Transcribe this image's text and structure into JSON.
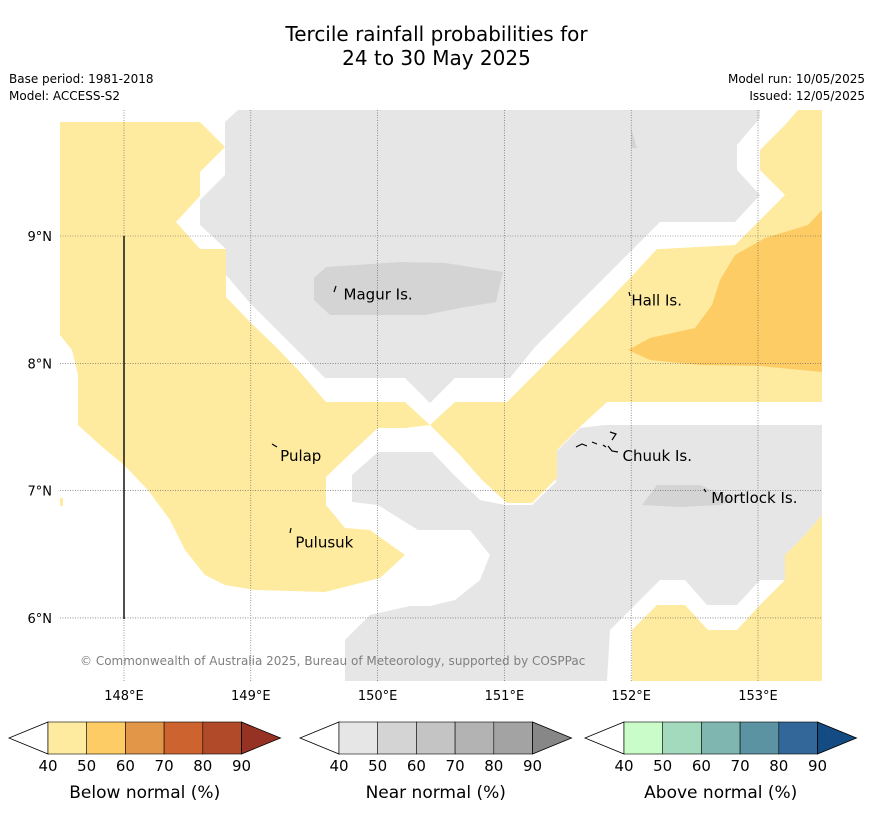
{
  "title_line1": "Tercile rainfall probabilities for",
  "title_line2": "24 to 30 May 2025",
  "base_period": "Base period: 1981-2018",
  "model": "Model: ACCESS-S2",
  "model_run": "Model run: 10/05/2025",
  "issued": "Issued: 12/05/2025",
  "copyright": "© Commonwealth of Australia 2025, Bureau of Meteorology, supported by COSPPac",
  "longitude_ticks": [
    "148°E",
    "149°E",
    "150°E",
    "151°E",
    "152°E",
    "153°E"
  ],
  "latitude_ticks": [
    "9°N",
    "8°N",
    "7°N",
    "6°N"
  ],
  "places": [
    {
      "name": "Magur Is.",
      "lon": 149.7,
      "lat": 8.55
    },
    {
      "name": "Hall Is.",
      "lon": 151.97,
      "lat": 8.5
    },
    {
      "name": "Pulap",
      "lon": 149.2,
      "lat": 7.28
    },
    {
      "name": "Chuuk Is.",
      "lon": 151.9,
      "lat": 7.28
    },
    {
      "name": "Mortlock Is.",
      "lon": 152.6,
      "lat": 6.95
    },
    {
      "name": "Pulusuk",
      "lon": 149.32,
      "lat": 6.6
    }
  ],
  "colors": {
    "below_40_50": "#feeb9f",
    "below_50_60": "#fdcc65",
    "near_40_50": "#e6e6e6",
    "near_50_60": "#d4d4d4",
    "water_gap": "#ffffff"
  },
  "legends": [
    {
      "label": "Below normal (%)",
      "ticks": [
        "40",
        "50",
        "60",
        "70",
        "80",
        "90"
      ],
      "colors": [
        "#feeb9f",
        "#fdcc65",
        "#e29647",
        "#cd6430",
        "#b04a28",
        "#963223"
      ]
    },
    {
      "label": "Near normal (%)",
      "ticks": [
        "40",
        "50",
        "60",
        "70",
        "80",
        "90"
      ],
      "colors": [
        "#e6e6e6",
        "#d4d4d4",
        "#c4c4c4",
        "#b3b3b3",
        "#a3a3a3",
        "#878787"
      ]
    },
    {
      "label": "Above normal (%)",
      "ticks": [
        "40",
        "50",
        "60",
        "70",
        "80",
        "90"
      ],
      "colors": [
        "#c9fcc9",
        "#a3d9bd",
        "#7fb6b0",
        "#5b93a3",
        "#336699",
        "#144b82"
      ]
    }
  ]
}
